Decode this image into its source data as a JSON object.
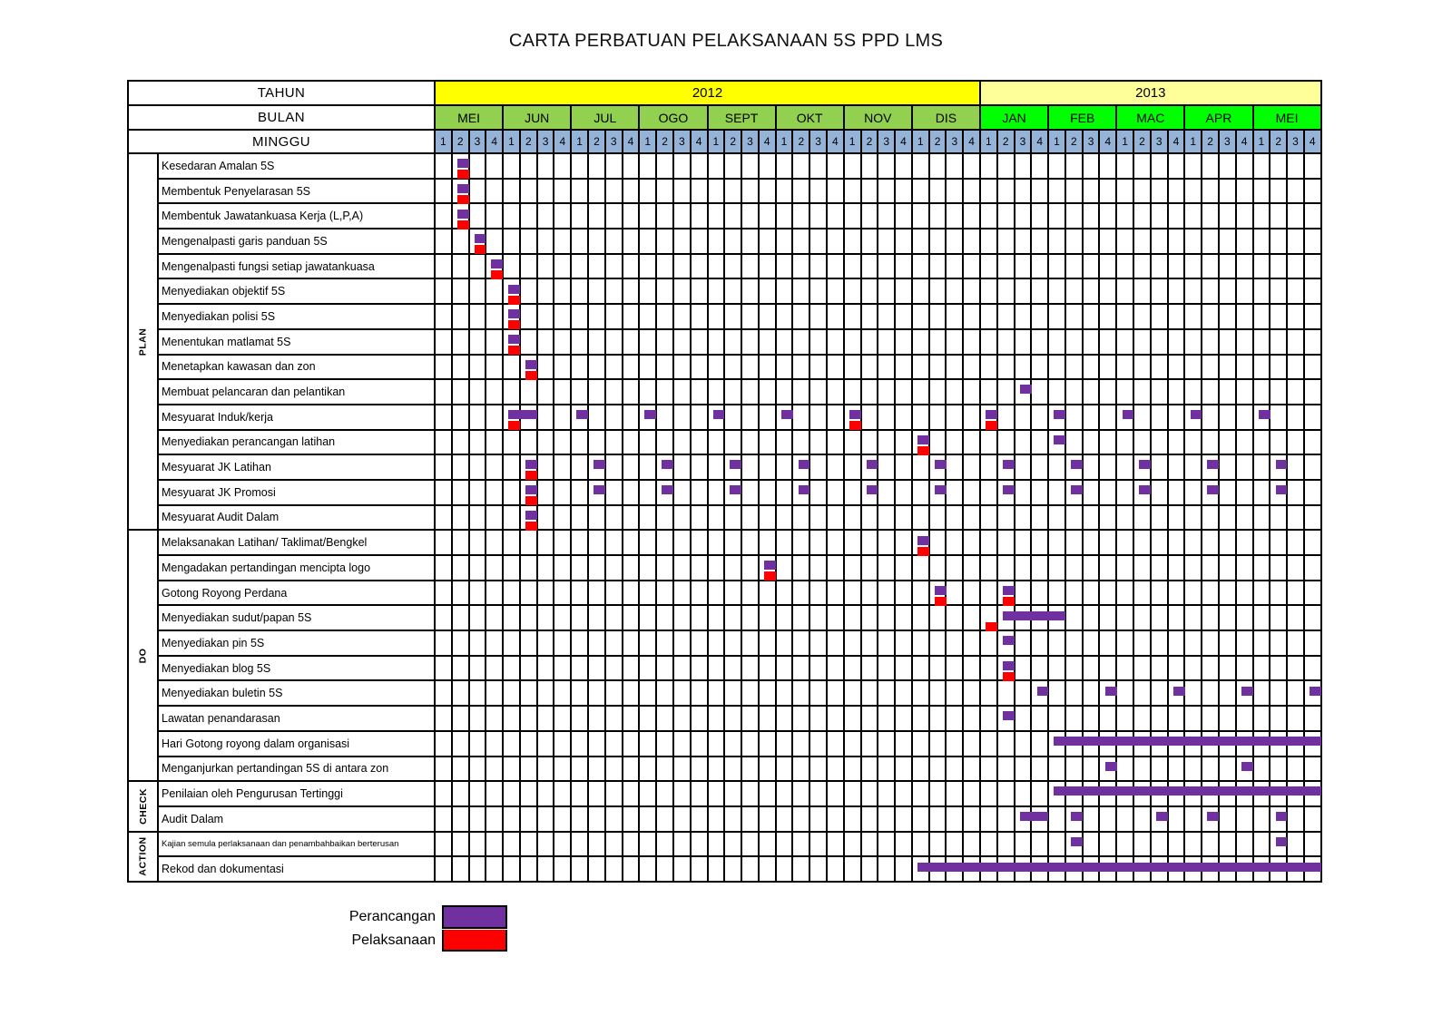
{
  "title": "CARTA PERBATUAN PELAKSANAAN 5S PPD LMS",
  "headers": {
    "tahun": "TAHUN",
    "bulan": "BULAN",
    "minggu": "MINGGU"
  },
  "legend": [
    {
      "label": "Perancangan",
      "color": "#7030A0"
    },
    {
      "label": "Pelaksanaan",
      "color": "#FF0000"
    }
  ],
  "colors": {
    "year_2012_bg": "#FFFF00",
    "year_2013_bg": "#FFFF99",
    "months_2012_bg": "#92D050",
    "months_2013_bg": "#00FF00",
    "week_header_bg": "#95B3D7",
    "grid_border": "#000000"
  },
  "chart_data": {
    "type": "gantt",
    "title": "CARTA PERBATUAN PELAKSANAAN 5S PPD LMS",
    "week_axis": {
      "years": [
        {
          "label": "2012",
          "months": [
            "MEI",
            "JUN",
            "JUL",
            "OGO",
            "SEPT",
            "OKT",
            "NOV",
            "DIS"
          ]
        },
        {
          "label": "2013",
          "months": [
            "JAN",
            "FEB",
            "MAC",
            "APR",
            "MEI"
          ]
        }
      ],
      "week_labels": [
        "1",
        "2",
        "3",
        "4"
      ],
      "total_weeks": 52
    },
    "sections": [
      {
        "label": "PLAN",
        "tasks": [
          {
            "name": "Kesedaran Amalan 5S",
            "plan_weeks": [
              2
            ],
            "actual_weeks": [
              2
            ]
          },
          {
            "name": "Membentuk Penyelarasan 5S",
            "plan_weeks": [
              2
            ],
            "actual_weeks": [
              2
            ]
          },
          {
            "name": "Membentuk Jawatankuasa Kerja (L,P,A)",
            "plan_weeks": [
              2
            ],
            "actual_weeks": [
              2
            ]
          },
          {
            "name": "Mengenalpasti garis panduan 5S",
            "plan_weeks": [
              3
            ],
            "actual_weeks": [
              3
            ]
          },
          {
            "name": "Mengenalpasti fungsi setiap jawatankuasa",
            "plan_weeks": [
              4
            ],
            "actual_weeks": [
              4
            ]
          },
          {
            "name": "Menyediakan objektif 5S",
            "plan_weeks": [
              5
            ],
            "actual_weeks": [
              5
            ]
          },
          {
            "name": "Menyediakan polisi 5S",
            "plan_weeks": [
              5
            ],
            "actual_weeks": [
              5
            ]
          },
          {
            "name": "Menentukan matlamat 5S",
            "plan_weeks": [
              5
            ],
            "actual_weeks": [
              5
            ]
          },
          {
            "name": "Menetapkan kawasan dan zon",
            "plan_weeks": [
              6
            ],
            "actual_weeks": [
              6
            ]
          },
          {
            "name": "Membuat pelancaran dan pelantikan",
            "plan_weeks": [
              35
            ],
            "actual_weeks": []
          },
          {
            "name": "Mesyuarat Induk/kerja",
            "plan_weeks": [
              5,
              6,
              9,
              13,
              17,
              21,
              25,
              33,
              37,
              41,
              45,
              49
            ],
            "actual_weeks": [
              5,
              25,
              33
            ]
          },
          {
            "name": "Menyediakan perancangan latihan",
            "plan_weeks": [
              29,
              37
            ],
            "actual_weeks": [
              29
            ]
          },
          {
            "name": "Mesyuarat JK Latihan",
            "plan_weeks": [
              6,
              10,
              14,
              18,
              22,
              26,
              30,
              34,
              38,
              42,
              46,
              50
            ],
            "actual_weeks": [
              6
            ]
          },
          {
            "name": "Mesyuarat JK Promosi",
            "plan_weeks": [
              6,
              10,
              14,
              18,
              22,
              26,
              30,
              34,
              38,
              42,
              46,
              50
            ],
            "actual_weeks": [
              6
            ]
          },
          {
            "name": "Mesyuarat Audit Dalam",
            "plan_weeks": [
              6
            ],
            "actual_weeks": [
              6
            ]
          }
        ]
      },
      {
        "label": "DO",
        "tasks": [
          {
            "name": "Melaksanakan Latihan/ Taklimat/Bengkel",
            "plan_weeks": [
              29
            ],
            "actual_weeks": [
              29
            ]
          },
          {
            "name": "Mengadakan pertandingan mencipta logo",
            "plan_weeks": [
              20
            ],
            "actual_weeks": [
              20
            ]
          },
          {
            "name": "Gotong Royong Perdana",
            "plan_weeks": [
              30,
              34
            ],
            "actual_weeks": [
              30,
              34
            ]
          },
          {
            "name": "Menyediakan sudut/papan 5S",
            "plan_weeks": [
              34,
              35,
              36,
              37
            ],
            "actual_weeks": [
              33
            ]
          },
          {
            "name": "Menyediakan pin 5S",
            "plan_weeks": [
              34
            ],
            "actual_weeks": []
          },
          {
            "name": "Menyediakan blog 5S",
            "plan_weeks": [
              34
            ],
            "actual_weeks": [
              34
            ]
          },
          {
            "name": "Menyediakan buletin 5S",
            "plan_weeks": [
              36,
              40,
              44,
              48,
              52
            ],
            "actual_weeks": []
          },
          {
            "name": "Lawatan penandarasan",
            "plan_weeks": [
              34
            ],
            "actual_weeks": []
          },
          {
            "name": "Hari Gotong royong dalam organisasi",
            "plan_weeks": [
              37,
              38,
              39,
              40,
              41,
              42,
              43,
              44,
              45,
              46,
              47,
              48,
              49,
              50,
              51,
              52
            ],
            "actual_weeks": []
          },
          {
            "name": "Menganjurkan pertandingan 5S di antara zon",
            "plan_weeks": [
              40,
              48
            ],
            "actual_weeks": []
          }
        ]
      },
      {
        "label": "CHECK",
        "tasks": [
          {
            "name": "Penilaian oleh Pengurusan Tertinggi",
            "plan_weeks": [
              37,
              38,
              39,
              40,
              41,
              42,
              43,
              44,
              45,
              46,
              47,
              48,
              49,
              50,
              51,
              52
            ],
            "actual_weeks": []
          },
          {
            "name": "Audit Dalam",
            "plan_weeks": [
              35,
              36,
              38,
              43,
              46,
              50
            ],
            "actual_weeks": []
          }
        ]
      },
      {
        "label": "ACTION",
        "tasks": [
          {
            "name": "Kajian semula perlaksanaan dan penambahbaikan berterusan",
            "plan_weeks": [
              38,
              50
            ],
            "actual_weeks": []
          },
          {
            "name": "Rekod dan dokumentasi",
            "plan_weeks": [
              29,
              30,
              31,
              32,
              33,
              34,
              35,
              36,
              37,
              38,
              39,
              40,
              41,
              42,
              43,
              44,
              45,
              46,
              47,
              48,
              49,
              50,
              51,
              52
            ],
            "actual_weeks": []
          }
        ]
      }
    ]
  }
}
